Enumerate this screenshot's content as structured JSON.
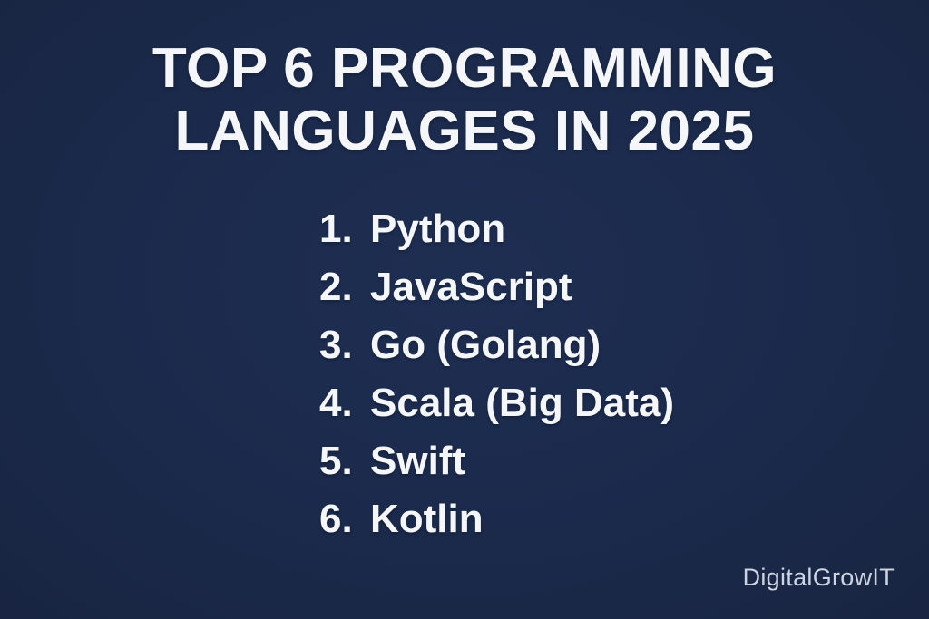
{
  "page": {
    "background_color": "#1b2a4b",
    "text_color": "#f4f6fa",
    "watermark_color": "#ccd4e2"
  },
  "title": {
    "line1": "TOP 6 PROGRAMMING",
    "line2": "LANGUAGES IN 2025"
  },
  "list": {
    "items": [
      {
        "number": "1.",
        "label": "Python"
      },
      {
        "number": "2.",
        "label": "JavaScript"
      },
      {
        "number": "3.",
        "label": "Go (Golang)"
      },
      {
        "number": "4.",
        "label": "Scala (Big Data)"
      },
      {
        "number": "5.",
        "label": "Swift"
      },
      {
        "number": "6.",
        "label": "Kotlin"
      }
    ]
  },
  "watermark": {
    "label": "DigitalGrowIT"
  }
}
